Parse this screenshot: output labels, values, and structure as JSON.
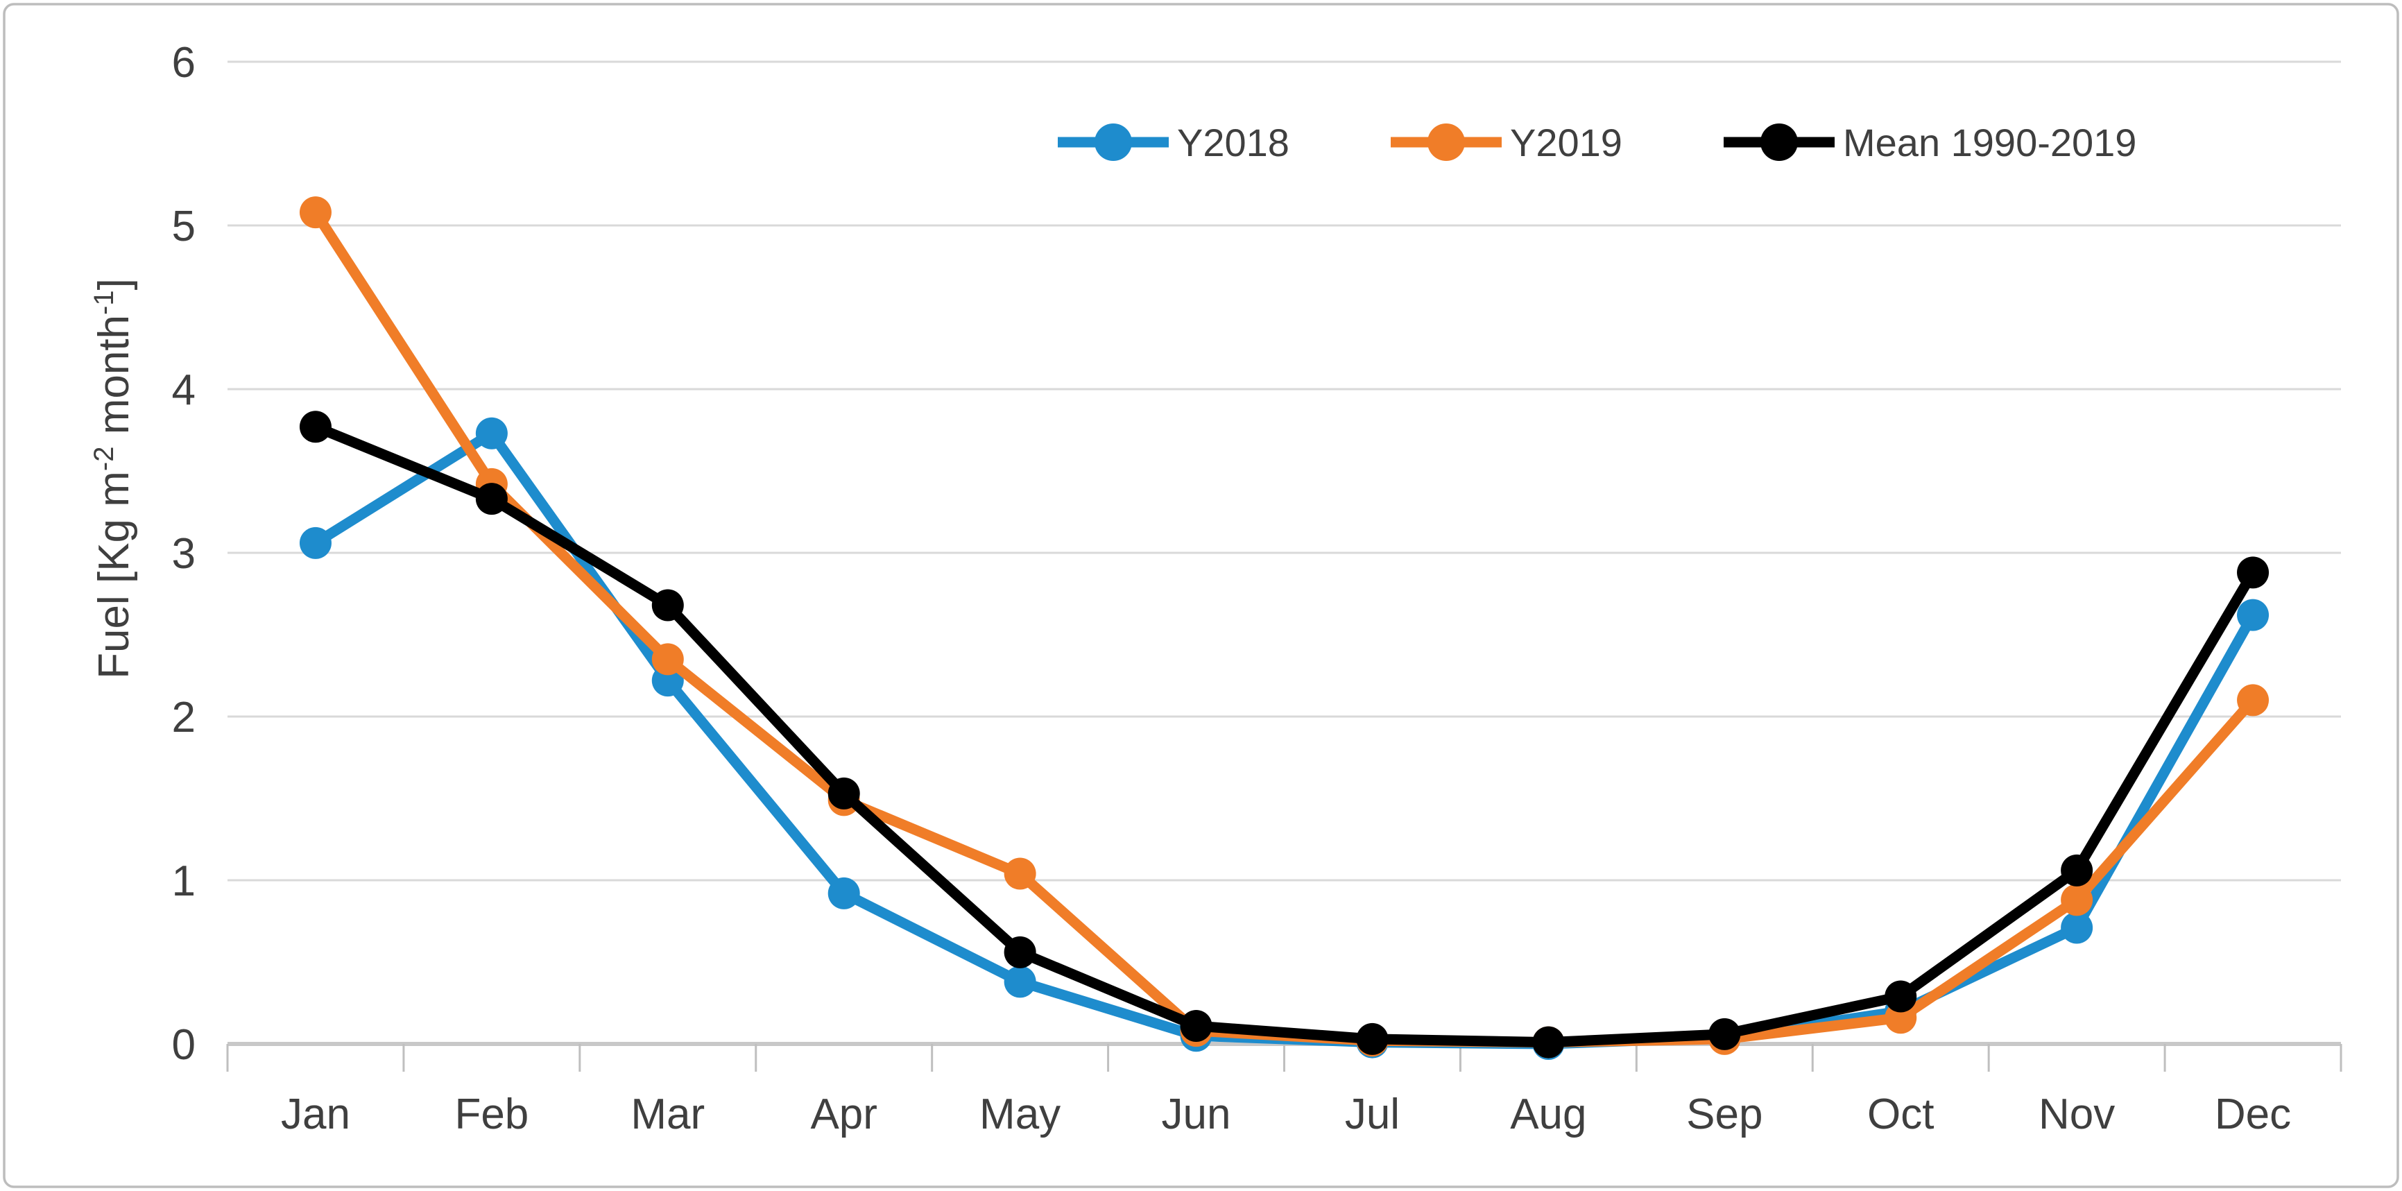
{
  "figure": {
    "background": "#ffffff",
    "border_color": "#bdbdbd",
    "text_color": "#3f3f3f",
    "grid_color": "#d9d9d9",
    "axis_line_color": "#c8c8c8",
    "tick_color": "#bfbfbf"
  },
  "chart_data": {
    "type": "line",
    "title": "",
    "xlabel": "",
    "ylabel": "Fuel [Kg m-2 month-1]",
    "ylabel_parts": [
      {
        "t": "Fuel [Kg m"
      },
      {
        "t": "-2",
        "sup": true
      },
      {
        "t": " month",
        "sup": false
      },
      {
        "t": "-1",
        "sup": true
      },
      {
        "t": "]",
        "sup": false
      }
    ],
    "categories": [
      "Jan",
      "Feb",
      "Mar",
      "Apr",
      "May",
      "Jun",
      "Jul",
      "Aug",
      "Sep",
      "Oct",
      "Nov",
      "Dec"
    ],
    "yticks": [
      0,
      1,
      2,
      3,
      4,
      5,
      6
    ],
    "ylim": [
      0,
      6
    ],
    "grid": "horizontal",
    "legend_position": "top-center",
    "marker": "circle",
    "series": [
      {
        "name": "Y2018",
        "color": "#1e8ccd",
        "values": [
          3.06,
          3.73,
          2.22,
          0.92,
          0.38,
          0.05,
          0.01,
          0.0,
          0.04,
          0.2,
          0.71,
          2.62
        ]
      },
      {
        "name": "Y2019",
        "color": "#f07d28",
        "values": [
          5.08,
          3.42,
          2.35,
          1.49,
          1.04,
          0.08,
          0.02,
          0.01,
          0.03,
          0.16,
          0.88,
          2.1
        ]
      },
      {
        "name": "Mean 1990-2019",
        "color": "#000000",
        "values": [
          3.77,
          3.33,
          2.68,
          1.53,
          0.56,
          0.11,
          0.03,
          0.01,
          0.06,
          0.29,
          1.06,
          2.88
        ]
      }
    ]
  }
}
